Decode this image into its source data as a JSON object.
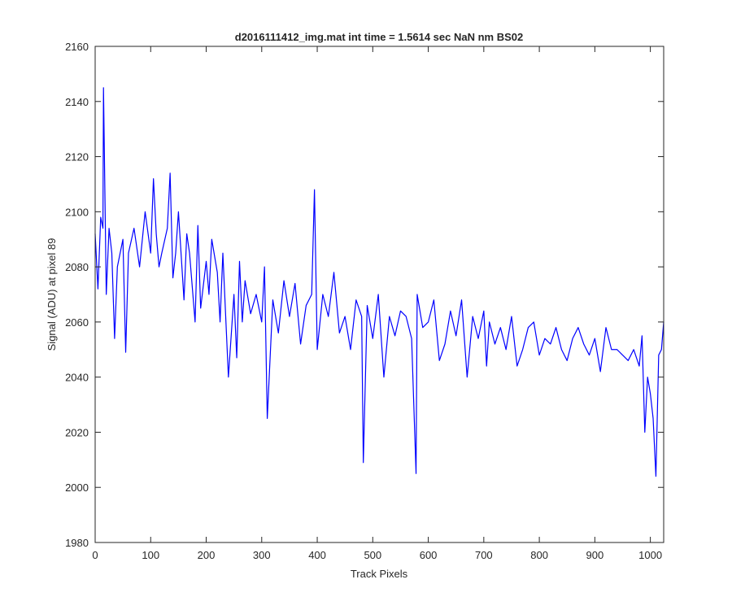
{
  "chart_data": {
    "type": "line",
    "title": "d2016111412_img.mat int time = 1.5614 sec  NaN nm BS02",
    "xlabel": "Track Pixels",
    "ylabel": "Signal (ADU) at pixel 89",
    "xlim": [
      0,
      1024
    ],
    "ylim": [
      1980,
      2160
    ],
    "xticks": [
      0,
      100,
      200,
      300,
      400,
      500,
      600,
      700,
      800,
      900,
      1000
    ],
    "yticks": [
      1980,
      2000,
      2020,
      2040,
      2060,
      2080,
      2100,
      2120,
      2140,
      2160
    ],
    "grid": false,
    "line_color": "#0000ff",
    "series": [
      {
        "name": "",
        "x": [
          0,
          5,
          10,
          14,
          15,
          20,
          25,
          30,
          35,
          40,
          50,
          55,
          60,
          70,
          80,
          90,
          100,
          105,
          110,
          115,
          120,
          130,
          135,
          140,
          145,
          150,
          160,
          165,
          170,
          180,
          185,
          190,
          200,
          205,
          210,
          220,
          225,
          230,
          240,
          250,
          255,
          260,
          265,
          270,
          280,
          290,
          300,
          305,
          310,
          320,
          330,
          340,
          350,
          360,
          370,
          380,
          390,
          395,
          400,
          410,
          420,
          430,
          440,
          450,
          460,
          470,
          480,
          483,
          490,
          500,
          510,
          520,
          530,
          540,
          550,
          560,
          570,
          578,
          580,
          590,
          600,
          610,
          620,
          630,
          640,
          650,
          660,
          670,
          680,
          690,
          700,
          705,
          710,
          720,
          730,
          740,
          750,
          760,
          770,
          780,
          790,
          800,
          810,
          820,
          830,
          840,
          850,
          860,
          870,
          880,
          890,
          900,
          910,
          920,
          930,
          940,
          950,
          960,
          970,
          980,
          985,
          990,
          995,
          1000,
          1005,
          1010,
          1015,
          1020,
          1024
        ],
        "values": [
          2092,
          2072,
          2098,
          2094,
          2145,
          2070,
          2094,
          2085,
          2054,
          2080,
          2090,
          2049,
          2085,
          2094,
          2080,
          2100,
          2085,
          2112,
          2092,
          2080,
          2085,
          2094,
          2114,
          2076,
          2085,
          2100,
          2068,
          2092,
          2085,
          2060,
          2095,
          2065,
          2082,
          2070,
          2090,
          2078,
          2060,
          2085,
          2040,
          2070,
          2047,
          2082,
          2060,
          2075,
          2063,
          2070,
          2060,
          2080,
          2025,
          2068,
          2056,
          2075,
          2062,
          2074,
          2052,
          2066,
          2070,
          2108,
          2050,
          2070,
          2062,
          2078,
          2056,
          2062,
          2050,
          2068,
          2062,
          2009,
          2066,
          2054,
          2070,
          2040,
          2062,
          2055,
          2064,
          2062,
          2054,
          2005,
          2070,
          2058,
          2060,
          2068,
          2046,
          2052,
          2064,
          2055,
          2068,
          2040,
          2062,
          2054,
          2064,
          2044,
          2060,
          2052,
          2058,
          2050,
          2062,
          2044,
          2050,
          2058,
          2060,
          2048,
          2054,
          2052,
          2058,
          2050,
          2046,
          2054,
          2058,
          2052,
          2048,
          2054,
          2042,
          2058,
          2050,
          2050,
          2048,
          2046,
          2050,
          2044,
          2055,
          2020,
          2040,
          2034,
          2025,
          2004,
          2048,
          2050,
          2060
        ]
      }
    ]
  }
}
